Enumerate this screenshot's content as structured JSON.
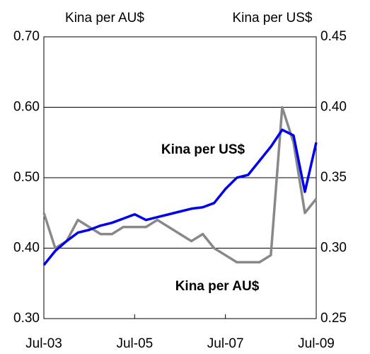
{
  "chart_data": {
    "type": "line",
    "ylabel": "Kina per AU$",
    "y2label": "Kina per US$",
    "x": [
      2003.5,
      2003.75,
      2004,
      2004.25,
      2004.5,
      2004.75,
      2005,
      2005.25,
      2005.5,
      2005.75,
      2006,
      2006.25,
      2006.5,
      2006.75,
      2007,
      2007.25,
      2007.5,
      2007.75,
      2008,
      2008.25,
      2008.5,
      2008.75,
      2009,
      2009.25,
      2009.5
    ],
    "series": [
      {
        "name": "Kina per AU$",
        "color": "#888888",
        "axis": "y",
        "values": [
          0.45,
          0.4,
          0.41,
          0.44,
          0.43,
          0.42,
          0.42,
          0.43,
          0.43,
          0.43,
          0.44,
          0.43,
          0.42,
          0.41,
          0.42,
          0.4,
          0.39,
          0.38,
          0.38,
          0.38,
          0.39,
          0.6,
          0.55,
          0.45,
          0.47
        ]
      },
      {
        "name": "Kina per US$",
        "color": "#0000ee",
        "axis": "y2",
        "values": [
          0.288,
          0.298,
          0.305,
          0.311,
          0.313,
          0.316,
          0.318,
          0.321,
          0.324,
          0.32,
          0.322,
          0.324,
          0.326,
          0.328,
          0.329,
          0.332,
          0.342,
          0.35,
          0.352,
          0.362,
          0.372,
          0.384,
          0.38,
          0.34,
          0.375
        ]
      }
    ],
    "xlim": [
      2003.5,
      2009.5
    ],
    "xticks": [
      {
        "value": 2003.5,
        "label": "Jul-03"
      },
      {
        "value": 2005.5,
        "label": "Jul-05"
      },
      {
        "value": 2007.5,
        "label": "Jul-07"
      },
      {
        "value": 2009.5,
        "label": "Jul-09"
      }
    ],
    "ylim": [
      0.3,
      0.7
    ],
    "yticks": [
      {
        "value": 0.3,
        "label": "0.30"
      },
      {
        "value": 0.4,
        "label": "0.40"
      },
      {
        "value": 0.5,
        "label": "0.50"
      },
      {
        "value": 0.6,
        "label": "0.60"
      },
      {
        "value": 0.7,
        "label": "0.70"
      }
    ],
    "y2lim": [
      0.25,
      0.45
    ],
    "y2ticks": [
      {
        "value": 0.25,
        "label": "0.25"
      },
      {
        "value": 0.3,
        "label": "0.30"
      },
      {
        "value": 0.35,
        "label": "0.35"
      },
      {
        "value": 0.4,
        "label": "0.40"
      },
      {
        "value": 0.45,
        "label": "0.45"
      }
    ],
    "grid": true
  }
}
